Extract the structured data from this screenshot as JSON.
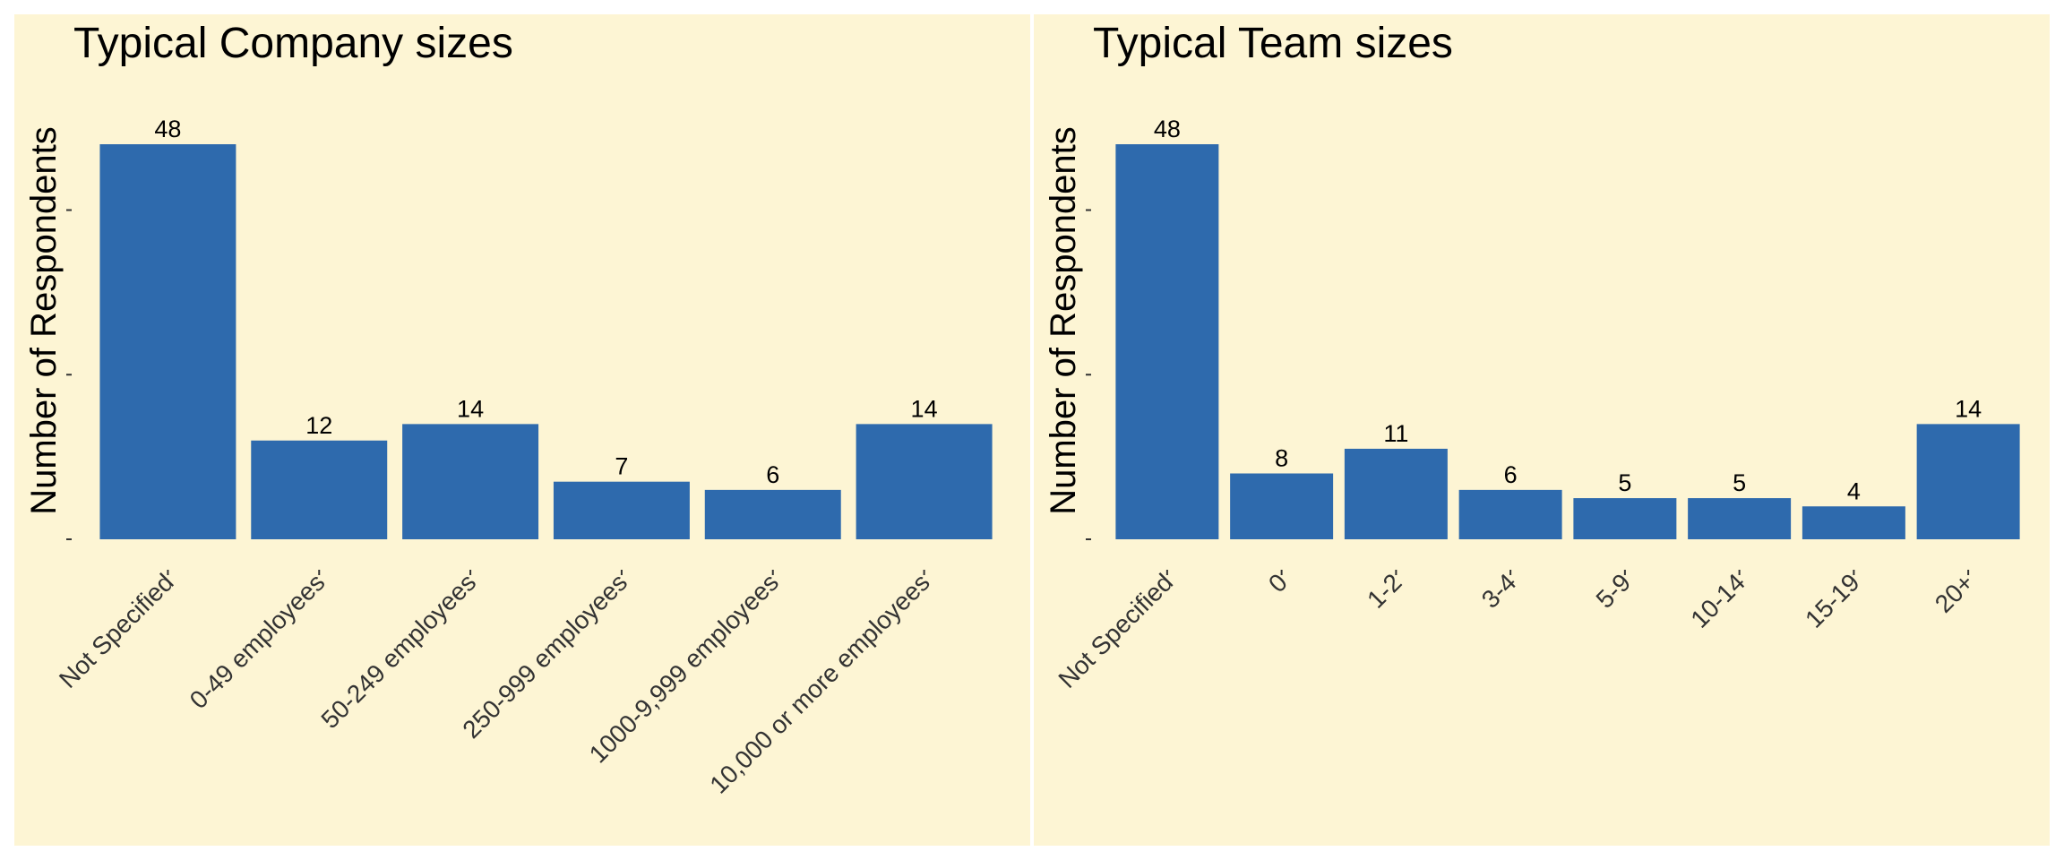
{
  "colors": {
    "panel_background": "#fdf5d4",
    "bar_fill": "#2e6aad",
    "figure_background": "#ffffff"
  },
  "chart_data": [
    {
      "type": "bar",
      "title": "Typical Company sizes",
      "xlabel": "",
      "ylabel": "Number of Respondents",
      "categories": [
        "Not Specified",
        "0-49 employees",
        "50-249 employees",
        "250-999 employees",
        "1000-9,999 employees",
        "10,000 or more employees"
      ],
      "values": [
        48,
        12,
        14,
        7,
        6,
        14
      ],
      "ylim": [
        0,
        48
      ],
      "y_ticks": [
        0,
        20,
        40
      ],
      "y_tick_labels_shown": false,
      "grid": false,
      "legend": "none",
      "data_labels": true
    },
    {
      "type": "bar",
      "title": "Typical Team sizes",
      "xlabel": "",
      "ylabel": "Number of Respondents",
      "categories": [
        "Not Specified",
        "0",
        "1-2",
        "3-4",
        "5-9",
        "10-14",
        "15-19",
        "20+"
      ],
      "values": [
        48,
        8,
        11,
        6,
        5,
        5,
        4,
        14
      ],
      "ylim": [
        0,
        48
      ],
      "y_ticks": [
        0,
        20,
        40
      ],
      "y_tick_labels_shown": false,
      "grid": false,
      "legend": "none",
      "data_labels": true
    }
  ]
}
